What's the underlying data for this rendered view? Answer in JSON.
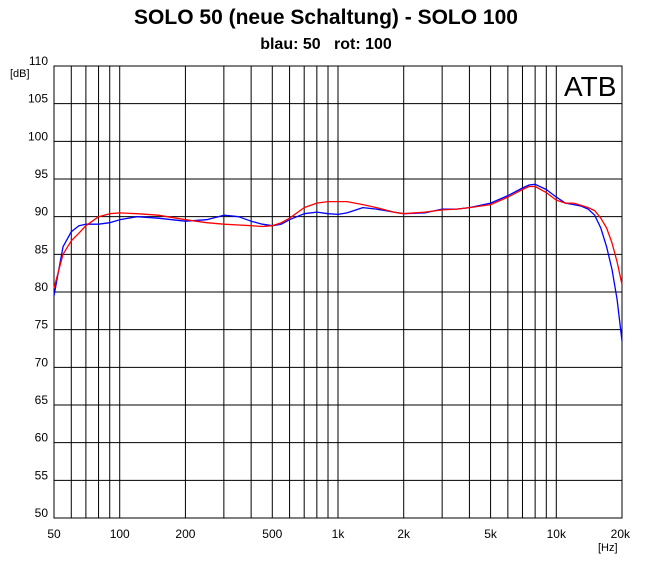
{
  "chart_data": {
    "type": "line",
    "title": "SOLO 50 (neue Schaltung)  - SOLO 100",
    "subtitle": "blau: 50   rot: 100",
    "ylabel": "[dB]",
    "xlabel": "[Hz]",
    "logo": "ATB",
    "xscale": "log",
    "xlim": [
      50,
      20000
    ],
    "ylim": [
      50,
      110
    ],
    "grid": true,
    "x_ticks": [
      {
        "value": 50,
        "label": "50"
      },
      {
        "value": 100,
        "label": "100"
      },
      {
        "value": 200,
        "label": "200"
      },
      {
        "value": 500,
        "label": "500"
      },
      {
        "value": 1000,
        "label": "1k"
      },
      {
        "value": 2000,
        "label": "2k"
      },
      {
        "value": 5000,
        "label": "5k"
      },
      {
        "value": 10000,
        "label": "10k"
      },
      {
        "value": 20000,
        "label": "20k"
      }
    ],
    "y_ticks": [
      {
        "value": 110,
        "label": "110"
      },
      {
        "value": 105,
        "label": "105"
      },
      {
        "value": 100,
        "label": "100"
      },
      {
        "value": 95,
        "label": "95"
      },
      {
        "value": 90,
        "label": "90"
      },
      {
        "value": 85,
        "label": "85"
      },
      {
        "value": 80,
        "label": "80"
      },
      {
        "value": 75,
        "label": "75"
      },
      {
        "value": 70,
        "label": "70"
      },
      {
        "value": 65,
        "label": "65"
      },
      {
        "value": 60,
        "label": "60"
      },
      {
        "value": 55,
        "label": "55"
      },
      {
        "value": 50,
        "label": "50"
      }
    ],
    "series": [
      {
        "color": "#0000ff",
        "x": [
          50,
          55,
          60,
          65,
          70,
          80,
          90,
          100,
          120,
          150,
          200,
          250,
          300,
          350,
          400,
          450,
          500,
          550,
          600,
          700,
          800,
          900,
          1000,
          1100,
          1300,
          1500,
          1800,
          2000,
          2500,
          3000,
          3500,
          4000,
          5000,
          6000,
          7000,
          7500,
          8000,
          9000,
          10000,
          11000,
          12000,
          13000,
          14000,
          15000,
          16000,
          17000,
          18000,
          19000,
          20000
        ],
        "y": [
          79.5,
          86.0,
          88.0,
          88.8,
          89.0,
          89.0,
          89.2,
          89.6,
          90.0,
          89.8,
          89.4,
          89.6,
          90.2,
          90.0,
          89.4,
          89.0,
          88.8,
          89.0,
          89.6,
          90.4,
          90.6,
          90.4,
          90.3,
          90.5,
          91.2,
          91.0,
          90.6,
          90.4,
          90.5,
          91.0,
          91.0,
          91.2,
          91.8,
          92.8,
          93.8,
          94.2,
          94.3,
          93.6,
          92.6,
          91.8,
          91.6,
          91.4,
          91.0,
          90.2,
          88.5,
          86.0,
          83.0,
          79.0,
          73.5
        ]
      },
      {
        "color": "#ff0000",
        "x": [
          50,
          55,
          60,
          65,
          70,
          80,
          90,
          100,
          120,
          150,
          200,
          250,
          300,
          350,
          400,
          450,
          500,
          550,
          600,
          700,
          800,
          900,
          1000,
          1100,
          1300,
          1500,
          1800,
          2000,
          2500,
          3000,
          3500,
          4000,
          5000,
          6000,
          7000,
          7500,
          8000,
          9000,
          10000,
          11000,
          12000,
          13000,
          14000,
          15000,
          16000,
          17000,
          18000,
          19000,
          20000
        ],
        "y": [
          80.5,
          85.0,
          86.8,
          87.8,
          88.8,
          90.0,
          90.4,
          90.5,
          90.4,
          90.2,
          89.6,
          89.2,
          89.0,
          88.9,
          88.8,
          88.7,
          88.8,
          89.2,
          89.8,
          91.2,
          91.8,
          92.0,
          92.0,
          92.0,
          91.6,
          91.2,
          90.6,
          90.4,
          90.6,
          90.9,
          91.0,
          91.2,
          91.6,
          92.6,
          93.6,
          94.0,
          94.0,
          93.2,
          92.2,
          91.8,
          91.8,
          91.5,
          91.2,
          90.8,
          89.8,
          88.5,
          86.5,
          84.0,
          81.0
        ]
      }
    ]
  }
}
